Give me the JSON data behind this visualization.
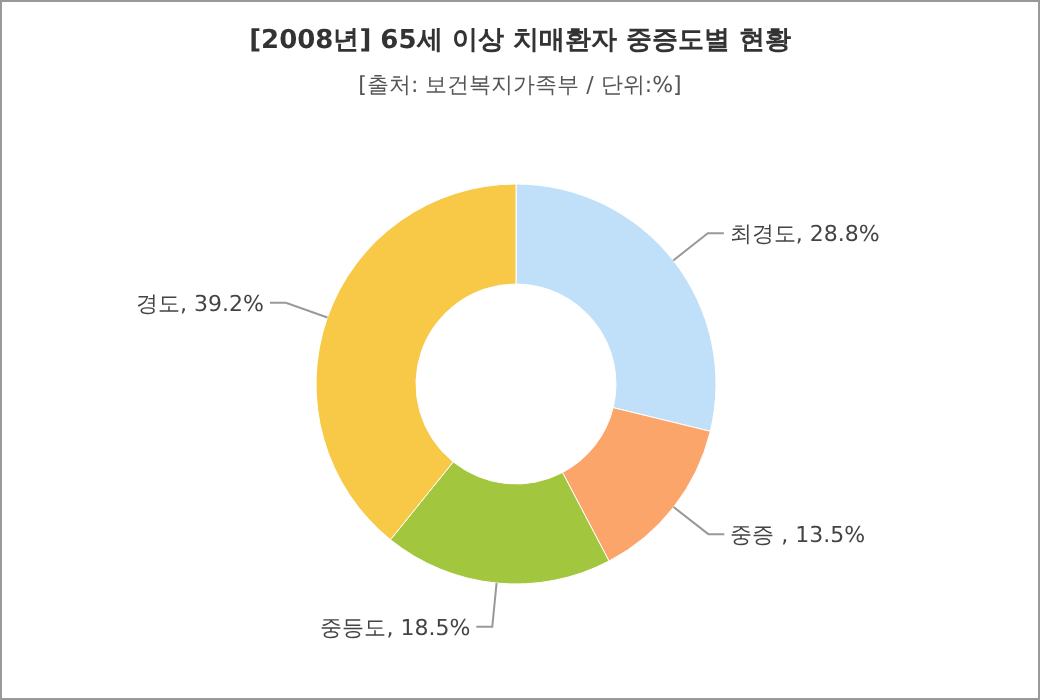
{
  "chart_data": {
    "type": "donut",
    "title": "[2008년] 65세 이상 치매환자 중증도별 현황",
    "subtitle": "[출처: 보건복지가족부 / 단위:%]",
    "categories": [
      "최경도",
      "중증 ",
      "중등도",
      "경도"
    ],
    "values": [
      28.8,
      13.5,
      18.5,
      39.2
    ],
    "colors": [
      "#bfe0f8",
      "#fba56a",
      "#a2c63e",
      "#f7c947"
    ],
    "value_labels": [
      ", 28.8%",
      ", 13.5%",
      ", 18.5%",
      ", 39.2%"
    ]
  }
}
